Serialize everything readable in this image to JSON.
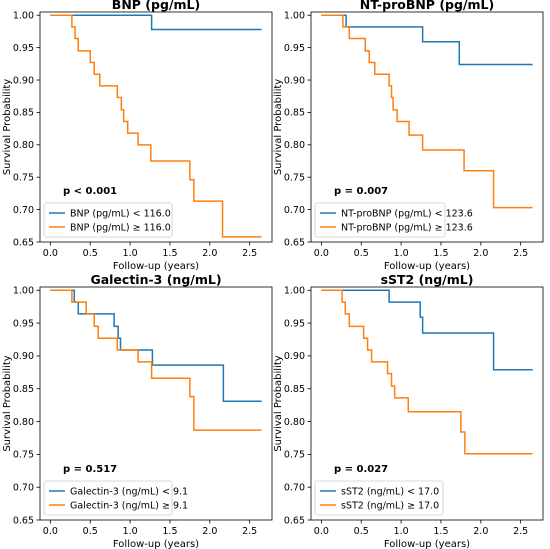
{
  "colors": {
    "blue": "#1f77b4",
    "orange": "#ff7f0e"
  },
  "chart_data": [
    {
      "type": "line",
      "title": "BNP (pg/mL)",
      "xlabel": "Follow-up (years)",
      "ylabel": "Survival Probability",
      "xlim": [
        -0.13,
        2.78
      ],
      "ylim": [
        0.65,
        1.005
      ],
      "xticks": [
        "0.0",
        "0.5",
        "1.0",
        "1.5",
        "2.0",
        "2.5"
      ],
      "yticks": [
        "0.65",
        "0.70",
        "0.75",
        "0.80",
        "0.85",
        "0.90",
        "0.95",
        "1.00"
      ],
      "annotation": "p < 0.001",
      "legend_position": "lower-left",
      "series": [
        {
          "name": "BNP (pg/mL) < 116.0",
          "color": "#1f77b4",
          "points": [
            [
              0,
              1
            ],
            [
              1.27,
              1
            ],
            [
              1.27,
              0.978
            ],
            [
              2.65,
              0.978
            ]
          ]
        },
        {
          "name": "BNP (pg/mL) ≥ 116.0",
          "color": "#ff7f0e",
          "points": [
            [
              0,
              1
            ],
            [
              0.27,
              1
            ],
            [
              0.27,
              0.982
            ],
            [
              0.31,
              0.982
            ],
            [
              0.31,
              0.964
            ],
            [
              0.35,
              0.964
            ],
            [
              0.35,
              0.945
            ],
            [
              0.5,
              0.945
            ],
            [
              0.5,
              0.927
            ],
            [
              0.55,
              0.927
            ],
            [
              0.55,
              0.909
            ],
            [
              0.62,
              0.909
            ],
            [
              0.62,
              0.891
            ],
            [
              0.84,
              0.891
            ],
            [
              0.84,
              0.873
            ],
            [
              0.89,
              0.873
            ],
            [
              0.89,
              0.854
            ],
            [
              0.92,
              0.854
            ],
            [
              0.92,
              0.836
            ],
            [
              0.97,
              0.836
            ],
            [
              0.97,
              0.818
            ],
            [
              1.1,
              0.818
            ],
            [
              1.1,
              0.8
            ],
            [
              1.26,
              0.8
            ],
            [
              1.26,
              0.775
            ],
            [
              1.75,
              0.775
            ],
            [
              1.75,
              0.746
            ],
            [
              1.8,
              0.746
            ],
            [
              1.8,
              0.713
            ],
            [
              2.16,
              0.713
            ],
            [
              2.16,
              0.658
            ],
            [
              2.65,
              0.658
            ]
          ]
        }
      ]
    },
    {
      "type": "line",
      "title": "NT-proBNP (pg/mL)",
      "xlabel": "Follow-up (years)",
      "ylabel": "Survival Probability",
      "xlim": [
        -0.13,
        2.78
      ],
      "ylim": [
        0.65,
        1.005
      ],
      "xticks": [
        "0.0",
        "0.5",
        "1.0",
        "1.5",
        "2.0",
        "2.5"
      ],
      "yticks": [
        "0.65",
        "0.70",
        "0.75",
        "0.80",
        "0.85",
        "0.90",
        "0.95",
        "1.00"
      ],
      "annotation": "p = 0.007",
      "legend_position": "lower-left",
      "series": [
        {
          "name": "NT-proBNP (pg/mL) < 123.6",
          "color": "#1f77b4",
          "points": [
            [
              0,
              1
            ],
            [
              0.31,
              1
            ],
            [
              0.31,
              0.982
            ],
            [
              1.27,
              0.982
            ],
            [
              1.27,
              0.959
            ],
            [
              1.73,
              0.959
            ],
            [
              1.73,
              0.924
            ],
            [
              2.65,
              0.924
            ]
          ]
        },
        {
          "name": "NT-proBNP (pg/mL) ≥ 123.6",
          "color": "#ff7f0e",
          "points": [
            [
              0,
              1
            ],
            [
              0.27,
              1
            ],
            [
              0.27,
              0.982
            ],
            [
              0.35,
              0.982
            ],
            [
              0.35,
              0.964
            ],
            [
              0.55,
              0.964
            ],
            [
              0.55,
              0.945
            ],
            [
              0.6,
              0.945
            ],
            [
              0.6,
              0.927
            ],
            [
              0.67,
              0.927
            ],
            [
              0.67,
              0.909
            ],
            [
              0.85,
              0.909
            ],
            [
              0.85,
              0.891
            ],
            [
              0.88,
              0.891
            ],
            [
              0.88,
              0.873
            ],
            [
              0.9,
              0.873
            ],
            [
              0.9,
              0.854
            ],
            [
              0.95,
              0.854
            ],
            [
              0.95,
              0.836
            ],
            [
              1.1,
              0.836
            ],
            [
              1.1,
              0.815
            ],
            [
              1.27,
              0.815
            ],
            [
              1.27,
              0.792
            ],
            [
              1.79,
              0.792
            ],
            [
              1.79,
              0.76
            ],
            [
              2.16,
              0.76
            ],
            [
              2.16,
              0.703
            ],
            [
              2.65,
              0.703
            ]
          ]
        }
      ]
    },
    {
      "type": "line",
      "title": "Galectin-3 (ng/mL)",
      "xlabel": "Follow-up (years)",
      "ylabel": "Survival Probability",
      "xlim": [
        -0.13,
        2.78
      ],
      "ylim": [
        0.65,
        1.005
      ],
      "xticks": [
        "0.0",
        "0.5",
        "1.0",
        "1.5",
        "2.0",
        "2.5"
      ],
      "yticks": [
        "0.65",
        "0.70",
        "0.75",
        "0.80",
        "0.85",
        "0.90",
        "0.95",
        "1.00"
      ],
      "annotation": "p = 0.517",
      "legend_position": "lower-left",
      "series": [
        {
          "name": "Galectin-3 (ng/mL) < 9.1",
          "color": "#1f77b4",
          "points": [
            [
              0,
              1
            ],
            [
              0.3,
              1
            ],
            [
              0.3,
              0.982
            ],
            [
              0.35,
              0.982
            ],
            [
              0.35,
              0.964
            ],
            [
              0.8,
              0.964
            ],
            [
              0.8,
              0.945
            ],
            [
              0.85,
              0.945
            ],
            [
              0.85,
              0.927
            ],
            [
              0.88,
              0.927
            ],
            [
              0.88,
              0.909
            ],
            [
              1.28,
              0.909
            ],
            [
              1.28,
              0.886
            ],
            [
              2.17,
              0.886
            ],
            [
              2.17,
              0.831
            ],
            [
              2.65,
              0.831
            ]
          ]
        },
        {
          "name": "Galectin-3 (ng/mL) ≥ 9.1",
          "color": "#ff7f0e",
          "points": [
            [
              0,
              1
            ],
            [
              0.27,
              1
            ],
            [
              0.27,
              0.982
            ],
            [
              0.45,
              0.982
            ],
            [
              0.45,
              0.964
            ],
            [
              0.55,
              0.964
            ],
            [
              0.55,
              0.945
            ],
            [
              0.6,
              0.945
            ],
            [
              0.6,
              0.927
            ],
            [
              0.84,
              0.927
            ],
            [
              0.84,
              0.909
            ],
            [
              1.1,
              0.909
            ],
            [
              1.1,
              0.891
            ],
            [
              1.27,
              0.891
            ],
            [
              1.27,
              0.866
            ],
            [
              1.75,
              0.866
            ],
            [
              1.75,
              0.838
            ],
            [
              1.8,
              0.838
            ],
            [
              1.8,
              0.787
            ],
            [
              2.65,
              0.787
            ]
          ]
        }
      ]
    },
    {
      "type": "line",
      "title": "sST2 (ng/mL)",
      "xlabel": "Follow-up (years)",
      "ylabel": "Survival Probability",
      "xlim": [
        -0.13,
        2.78
      ],
      "ylim": [
        0.65,
        1.005
      ],
      "xticks": [
        "0.0",
        "0.5",
        "1.0",
        "1.5",
        "2.0",
        "2.5"
      ],
      "yticks": [
        "0.65",
        "0.70",
        "0.75",
        "0.80",
        "0.85",
        "0.90",
        "0.95",
        "1.00"
      ],
      "annotation": "p = 0.027",
      "legend_position": "lower-left",
      "series": [
        {
          "name": "sST2 (ng/mL) < 17.0",
          "color": "#1f77b4",
          "points": [
            [
              0,
              1
            ],
            [
              0.85,
              1
            ],
            [
              0.85,
              0.982
            ],
            [
              1.24,
              0.982
            ],
            [
              1.24,
              0.959
            ],
            [
              1.27,
              0.959
            ],
            [
              1.27,
              0.935
            ],
            [
              2.16,
              0.935
            ],
            [
              2.16,
              0.879
            ],
            [
              2.65,
              0.879
            ]
          ]
        },
        {
          "name": "sST2 (ng/mL) ≥ 17.0",
          "color": "#ff7f0e",
          "points": [
            [
              0,
              1
            ],
            [
              0.26,
              1
            ],
            [
              0.26,
              0.982
            ],
            [
              0.3,
              0.982
            ],
            [
              0.3,
              0.964
            ],
            [
              0.35,
              0.964
            ],
            [
              0.35,
              0.945
            ],
            [
              0.53,
              0.945
            ],
            [
              0.53,
              0.927
            ],
            [
              0.58,
              0.927
            ],
            [
              0.58,
              0.909
            ],
            [
              0.63,
              0.909
            ],
            [
              0.63,
              0.891
            ],
            [
              0.83,
              0.891
            ],
            [
              0.83,
              0.873
            ],
            [
              0.88,
              0.873
            ],
            [
              0.88,
              0.854
            ],
            [
              0.92,
              0.854
            ],
            [
              0.92,
              0.836
            ],
            [
              1.09,
              0.836
            ],
            [
              1.09,
              0.815
            ],
            [
              1.75,
              0.815
            ],
            [
              1.75,
              0.784
            ],
            [
              1.8,
              0.784
            ],
            [
              1.8,
              0.751
            ],
            [
              2.65,
              0.751
            ]
          ]
        }
      ]
    }
  ]
}
